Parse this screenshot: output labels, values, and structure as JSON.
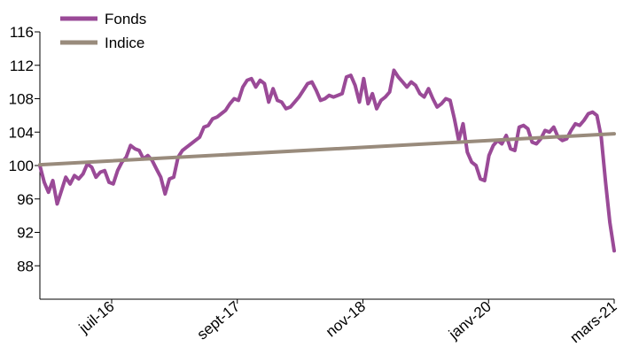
{
  "colors": {
    "fonds": "#9a4a97",
    "indice": "#998b7c",
    "axis": "#000000",
    "background": "#ffffff"
  },
  "chart_data": {
    "type": "line",
    "title": "",
    "xlabel": "",
    "ylabel": "",
    "ylim": [
      84,
      116
    ],
    "yticks": [
      116,
      112,
      108,
      104,
      100,
      96,
      92,
      88
    ],
    "xlim": [
      "2015-11",
      "2021-03"
    ],
    "xticks": [
      {
        "label": "juil-16",
        "date": "2016-07"
      },
      {
        "label": "sept-17",
        "date": "2017-09"
      },
      {
        "label": "nov-18",
        "date": "2018-11"
      },
      {
        "label": "janv-20",
        "date": "2020-01"
      },
      {
        "label": "mars-21",
        "date": "2021-03"
      }
    ],
    "grid": false,
    "legend": "top-left",
    "series": [
      {
        "name": "Fonds",
        "color": "#9a4a97",
        "points": [
          [
            "2015-11",
            100.0
          ],
          [
            "2015-11",
            98.0
          ],
          [
            "2015-12",
            96.8
          ],
          [
            "2015-12",
            98.2
          ],
          [
            "2016-01",
            95.4
          ],
          [
            "2016-01",
            97.0
          ],
          [
            "2016-02",
            98.6
          ],
          [
            "2016-02",
            97.8
          ],
          [
            "2016-03",
            98.8
          ],
          [
            "2016-03",
            98.4
          ],
          [
            "2016-04",
            99.0
          ],
          [
            "2016-04",
            100.2
          ],
          [
            "2016-05",
            99.8
          ],
          [
            "2016-05",
            98.6
          ],
          [
            "2016-06",
            99.2
          ],
          [
            "2016-06",
            99.4
          ],
          [
            "2016-07",
            98.0
          ],
          [
            "2016-07",
            97.8
          ],
          [
            "2016-08",
            99.4
          ],
          [
            "2016-08",
            100.4
          ],
          [
            "2016-09",
            101.0
          ],
          [
            "2016-09",
            102.4
          ],
          [
            "2016-10",
            102.0
          ],
          [
            "2016-10",
            101.8
          ],
          [
            "2016-11",
            100.8
          ],
          [
            "2016-11",
            101.2
          ],
          [
            "2016-12",
            100.6
          ],
          [
            "2016-12",
            99.6
          ],
          [
            "2017-01",
            98.6
          ],
          [
            "2017-01",
            96.6
          ],
          [
            "2017-02",
            98.4
          ],
          [
            "2017-02",
            98.6
          ],
          [
            "2017-03",
            101.0
          ],
          [
            "2017-03",
            101.8
          ],
          [
            "2017-04",
            102.2
          ],
          [
            "2017-04",
            102.6
          ],
          [
            "2017-05",
            103.0
          ],
          [
            "2017-05",
            103.4
          ],
          [
            "2017-06",
            104.6
          ],
          [
            "2017-06",
            104.8
          ],
          [
            "2017-07",
            105.6
          ],
          [
            "2017-07",
            105.8
          ],
          [
            "2017-08",
            106.2
          ],
          [
            "2017-08",
            106.6
          ],
          [
            "2017-09",
            107.4
          ],
          [
            "2017-09",
            108.0
          ],
          [
            "2017-09",
            107.8
          ],
          [
            "2017-10",
            109.4
          ],
          [
            "2017-10",
            110.2
          ],
          [
            "2017-11",
            110.4
          ],
          [
            "2017-11",
            109.4
          ],
          [
            "2017-12",
            110.2
          ],
          [
            "2017-12",
            109.8
          ],
          [
            "2018-01",
            107.6
          ],
          [
            "2018-01",
            109.2
          ],
          [
            "2018-02",
            107.8
          ],
          [
            "2018-02",
            107.6
          ],
          [
            "2018-03",
            106.8
          ],
          [
            "2018-03",
            107.0
          ],
          [
            "2018-04",
            107.6
          ],
          [
            "2018-04",
            108.2
          ],
          [
            "2018-05",
            109.0
          ],
          [
            "2018-05",
            109.8
          ],
          [
            "2018-06",
            110.0
          ],
          [
            "2018-06",
            109.0
          ],
          [
            "2018-07",
            107.8
          ],
          [
            "2018-07",
            108.0
          ],
          [
            "2018-08",
            108.4
          ],
          [
            "2018-08",
            108.2
          ],
          [
            "2018-09",
            108.4
          ],
          [
            "2018-09",
            108.6
          ],
          [
            "2018-10",
            110.6
          ],
          [
            "2018-10",
            110.8
          ],
          [
            "2018-11",
            109.6
          ],
          [
            "2018-11",
            107.6
          ],
          [
            "2018-12",
            110.4
          ],
          [
            "2018-12",
            107.4
          ],
          [
            "2019-01",
            108.6
          ],
          [
            "2019-01",
            106.8
          ],
          [
            "2019-02",
            107.8
          ],
          [
            "2019-02",
            108.2
          ],
          [
            "2019-03",
            108.8
          ],
          [
            "2019-03",
            111.4
          ],
          [
            "2019-04",
            110.6
          ],
          [
            "2019-04",
            110.0
          ],
          [
            "2019-05",
            109.4
          ],
          [
            "2019-05",
            110.0
          ],
          [
            "2019-06",
            109.6
          ],
          [
            "2019-06",
            108.6
          ],
          [
            "2019-07",
            108.2
          ],
          [
            "2019-07",
            109.2
          ],
          [
            "2019-08",
            108.0
          ],
          [
            "2019-08",
            107.0
          ],
          [
            "2019-09",
            107.4
          ],
          [
            "2019-09",
            108.0
          ],
          [
            "2019-10",
            107.8
          ],
          [
            "2019-10",
            105.6
          ],
          [
            "2019-11",
            103.0
          ],
          [
            "2019-11",
            105.0
          ],
          [
            "2019-12",
            101.6
          ],
          [
            "2019-12",
            100.4
          ],
          [
            "2020-01",
            100.0
          ],
          [
            "2020-01",
            98.4
          ],
          [
            "2020-02",
            98.2
          ],
          [
            "2020-02",
            101.2
          ],
          [
            "2020-03",
            102.4
          ],
          [
            "2020-03",
            103.0
          ],
          [
            "2020-04",
            102.6
          ],
          [
            "2020-04",
            103.6
          ],
          [
            "2020-05",
            102.0
          ],
          [
            "2020-05",
            101.8
          ],
          [
            "2020-06",
            104.6
          ],
          [
            "2020-06",
            104.8
          ],
          [
            "2020-07",
            104.4
          ],
          [
            "2020-07",
            102.8
          ],
          [
            "2020-08",
            102.6
          ],
          [
            "2020-08",
            103.2
          ],
          [
            "2020-09",
            104.2
          ],
          [
            "2020-09",
            104.0
          ],
          [
            "2020-10",
            104.6
          ],
          [
            "2020-10",
            103.4
          ],
          [
            "2020-11",
            103.0
          ],
          [
            "2020-11",
            103.2
          ],
          [
            "2020-12",
            104.2
          ],
          [
            "2020-12",
            105.0
          ],
          [
            "2021-01",
            104.8
          ],
          [
            "2021-01",
            105.4
          ],
          [
            "2021-02",
            106.2
          ],
          [
            "2021-02",
            106.4
          ],
          [
            "2021-03",
            106.0
          ],
          [
            "2021-03",
            103.4
          ],
          [
            "2021-03",
            98.0
          ],
          [
            "2021-03",
            93.2
          ],
          [
            "2021-03",
            89.8
          ]
        ]
      },
      {
        "name": "Indice",
        "color": "#998b7c",
        "points": [
          [
            "2015-11",
            100.1
          ],
          [
            "2021-03",
            103.8
          ]
        ]
      }
    ]
  },
  "legend": {
    "items": [
      {
        "label": "Fonds",
        "color": "#9a4a97"
      },
      {
        "label": "Indice",
        "color": "#998b7c"
      }
    ]
  }
}
